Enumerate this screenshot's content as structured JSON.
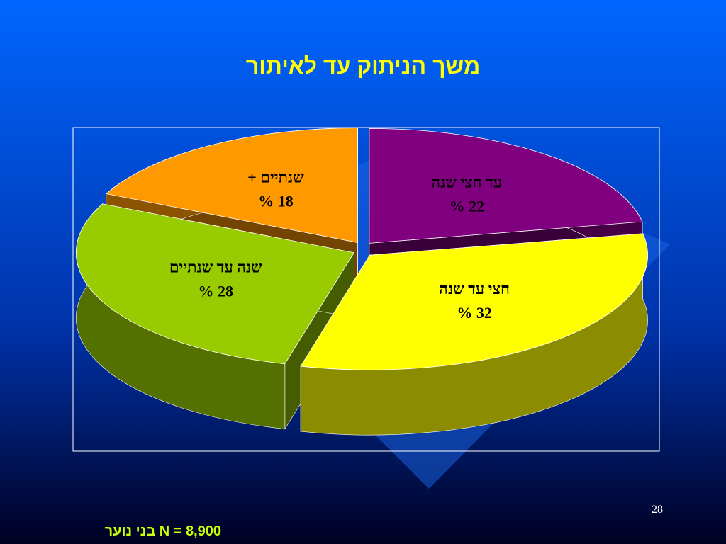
{
  "chart_data": {
    "type": "pie",
    "title": "משך הניתוק עד לאיתור",
    "categories": [
      "עד חצי שנה",
      "חצי עד שנה",
      "שנה עד שנתיים",
      "שנתיים +"
    ],
    "values": [
      22,
      32,
      28,
      18
    ],
    "value_labels": [
      "22 %",
      "32 %",
      "28 %",
      "18 %"
    ],
    "colors": [
      "#800080",
      "#ffff00",
      "#99cc00",
      "#ff9900"
    ]
  },
  "footer": {
    "note": "N = 8,900 בני נוער",
    "page_number": "28"
  }
}
